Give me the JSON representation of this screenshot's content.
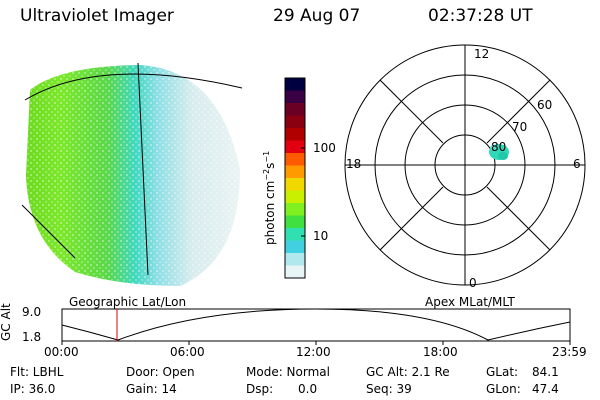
{
  "header": {
    "title": "Ultraviolet Imager",
    "date": "29 Aug 07",
    "time": "02:37:28 UT"
  },
  "colorbar": {
    "label_main": "photon cm",
    "label_exp1": "−2",
    "label_mid": "s",
    "label_exp2": "−1",
    "ticks": [
      "100",
      "10"
    ],
    "colors": [
      "#000040",
      "#3a0044",
      "#6a0024",
      "#8a0010",
      "#b00000",
      "#e00010",
      "#ff5a00",
      "#ff9a00",
      "#f0d800",
      "#c8f000",
      "#80f020",
      "#40e040",
      "#30e0b0",
      "#40d0e0",
      "#b0e8ee",
      "#e8f4f6"
    ]
  },
  "polar": {
    "labels": {
      "top": "12",
      "bottom": "0",
      "left": "18",
      "right": "6",
      "lat60": "60",
      "lat70": "70",
      "lat80": "80"
    }
  },
  "timeline": {
    "yaxis_label": "GC Alt",
    "ytick_top": "9.0",
    "ytick_bottom": "1.8",
    "left_title": "Geographic Lat/Lon",
    "right_title": "Apex MLat/MLT",
    "xticks": [
      "00:00",
      "06:00",
      "12:00",
      "18:00",
      "23:59"
    ]
  },
  "info": {
    "flt": "Flt: LBHL",
    "ip": "IP: 36.0",
    "door": "Door: Open",
    "gain": "Gain: 14",
    "mode": "Mode: Normal",
    "dsp_label": "Dsp:",
    "dsp_value": "0.0",
    "gcalt": "GC Alt: 2.1 Re",
    "seq": "Seq: 39",
    "glat_label": "GLat:",
    "glat_value": "84.1",
    "glon_label": "GLon:",
    "glon_value": "47.4"
  }
}
